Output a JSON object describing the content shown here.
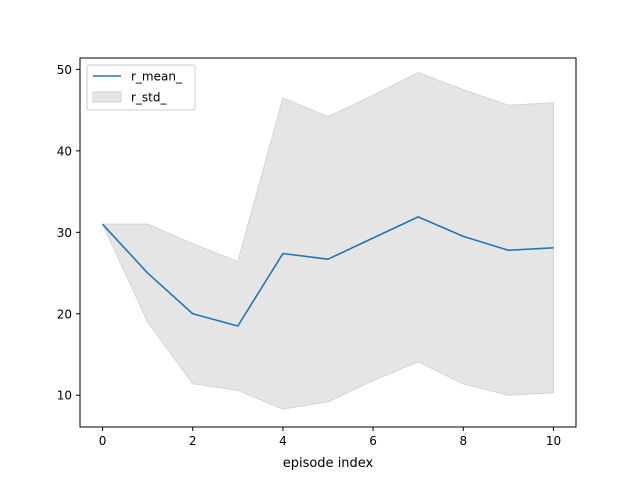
{
  "chart_data": {
    "type": "line",
    "xlabel": "episode index",
    "ylabel": "",
    "title": "",
    "xlim": [
      -0.5,
      10.5
    ],
    "ylim": [
      6.1,
      51.4
    ],
    "xticks": [
      0,
      2,
      4,
      6,
      8,
      10
    ],
    "yticks": [
      10,
      20,
      30,
      40,
      50
    ],
    "grid": false,
    "legend_position": "upper-left",
    "x": [
      0,
      1,
      2,
      3,
      4,
      5,
      6,
      7,
      8,
      9,
      10
    ],
    "series": [
      {
        "name": "r_mean_",
        "kind": "line",
        "color": "#1f77b4",
        "values": [
          31.0,
          25.0,
          20.0,
          18.5,
          27.4,
          26.7,
          29.3,
          31.9,
          29.5,
          27.8,
          28.1
        ]
      },
      {
        "name": "r_std_",
        "kind": "band",
        "color": "#e5e5e5",
        "upper": [
          31.0,
          31.0,
          28.6,
          26.4,
          46.5,
          44.2,
          46.8,
          49.6,
          47.5,
          45.6,
          45.9
        ],
        "lower": [
          31.0,
          19.0,
          11.4,
          10.6,
          8.3,
          9.2,
          11.8,
          14.1,
          11.4,
          10.0,
          10.3
        ]
      }
    ]
  }
}
